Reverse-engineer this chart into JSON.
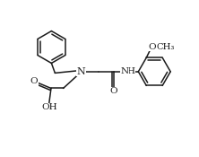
{
  "bg_color": "#ffffff",
  "line_color": "#1a1a1a",
  "line_width": 1.1,
  "fig_width": 2.22,
  "fig_height": 1.75,
  "dpi": 100,
  "xlim": [
    0,
    10
  ],
  "ylim": [
    0,
    8
  ]
}
